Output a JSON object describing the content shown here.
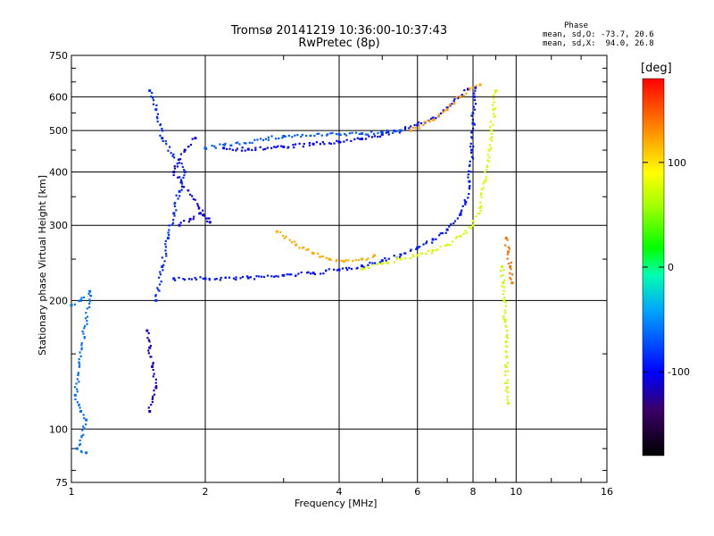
{
  "title": "Tromsø 20141219 10:36:00-10:37:43",
  "subtitle": "RwPretec (8p)",
  "stats": {
    "heading": "Phase",
    "line1": "mean, sd,O: -73.7, 20.6",
    "line2": "mean, sd,X:  94.0, 26.8"
  },
  "colorbar": {
    "label": "[deg]",
    "ticks": [
      "100",
      "0",
      "-100"
    ],
    "tick_values": [
      100,
      0,
      -100
    ],
    "range": [
      -180,
      180
    ]
  },
  "chart_data": {
    "type": "scatter",
    "title": "Tromsø 20141219 10:36:00-10:37:43",
    "subtitle": "RwPretec (8p)",
    "xlabel": "Frequency [MHz]",
    "ylabel": "Stationary phase Virtual Height [km]",
    "x_scale": "log",
    "y_scale": "log",
    "xlim": [
      1,
      16
    ],
    "ylim": [
      75,
      750
    ],
    "x_ticks": [
      1,
      2,
      4,
      6,
      8,
      10,
      16
    ],
    "x_tick_labels": [
      "1",
      "2",
      "4",
      "6",
      "8",
      "10",
      "16"
    ],
    "y_ticks": [
      75,
      100,
      200,
      300,
      400,
      500,
      600,
      750
    ],
    "y_tick_labels": [
      "75",
      "100",
      "200",
      "300",
      "400",
      "500",
      "600",
      "750"
    ],
    "grid": true,
    "color_encodes": "phase [deg]",
    "series": [
      {
        "color_phase": -95,
        "points": [
          [
            1.7,
            225
          ],
          [
            2,
            225
          ],
          [
            2.5,
            226
          ],
          [
            3,
            229
          ],
          [
            3.5,
            232
          ],
          [
            4,
            236
          ],
          [
            4.5,
            241
          ],
          [
            5,
            248
          ],
          [
            5.5,
            256
          ],
          [
            6,
            266
          ],
          [
            6.5,
            278
          ],
          [
            7,
            293
          ],
          [
            7.5,
            318
          ],
          [
            7.7,
            340
          ],
          [
            7.85,
            380
          ],
          [
            7.95,
            450
          ],
          [
            8,
            520
          ],
          [
            8.05,
            600
          ],
          [
            8.1,
            630
          ]
        ]
      },
      {
        "color_phase": -100,
        "points": [
          [
            2.2,
            455
          ],
          [
            2.5,
            452
          ],
          [
            3,
            458
          ],
          [
            3.5,
            465
          ],
          [
            4,
            470
          ],
          [
            4.5,
            478
          ],
          [
            5,
            490
          ],
          [
            5.5,
            500
          ],
          [
            6,
            515
          ],
          [
            6.5,
            535
          ],
          [
            7,
            565
          ],
          [
            7.5,
            600
          ],
          [
            7.8,
            625
          ]
        ]
      },
      {
        "color_phase": -70,
        "points": [
          [
            2,
            455
          ],
          [
            3,
            485
          ],
          [
            4,
            490
          ],
          [
            4.5,
            492
          ],
          [
            5,
            495
          ],
          [
            5.5,
            500
          ]
        ]
      },
      {
        "color_phase": 120,
        "points": [
          [
            2.9,
            290
          ],
          [
            3.2,
            270
          ],
          [
            3.5,
            258
          ],
          [
            3.8,
            250
          ],
          [
            4.1,
            247
          ],
          [
            4.5,
            250
          ],
          [
            4.8,
            255
          ]
        ]
      },
      {
        "color_phase": 75,
        "points": [
          [
            4.5,
            237
          ],
          [
            5,
            244
          ],
          [
            5.5,
            250
          ],
          [
            6,
            255
          ],
          [
            6.5,
            262
          ],
          [
            7,
            270
          ],
          [
            7.5,
            283
          ],
          [
            8,
            300
          ],
          [
            8.3,
            330
          ],
          [
            8.5,
            380
          ],
          [
            8.7,
            450
          ],
          [
            8.8,
            500
          ],
          [
            8.9,
            560
          ],
          [
            9,
            620
          ]
        ]
      },
      {
        "color_phase": 125,
        "points": [
          [
            5.8,
            500
          ],
          [
            6.5,
            530
          ],
          [
            7,
            560
          ],
          [
            7.5,
            600
          ],
          [
            8,
            630
          ],
          [
            8.3,
            640
          ]
        ]
      },
      {
        "color_phase": -85,
        "points": [
          [
            1.55,
            200
          ],
          [
            1.6,
            240
          ],
          [
            1.65,
            280
          ],
          [
            1.7,
            320
          ],
          [
            1.75,
            360
          ],
          [
            1.8,
            400
          ],
          [
            1.6,
            480
          ],
          [
            1.55,
            560
          ],
          [
            1.5,
            620
          ]
        ]
      },
      {
        "color_phase": -110,
        "points": [
          [
            1.75,
            300
          ],
          [
            1.85,
            310
          ],
          [
            1.95,
            320
          ],
          [
            2.05,
            305
          ],
          [
            1.7,
            400
          ],
          [
            1.8,
            450
          ],
          [
            1.9,
            480
          ]
        ]
      },
      {
        "color_phase": -115,
        "points": [
          [
            1.48,
            170
          ],
          [
            1.5,
            155
          ],
          [
            1.52,
            140
          ],
          [
            1.55,
            125
          ],
          [
            1.5,
            110
          ]
        ]
      },
      {
        "color_phase": -60,
        "points": [
          [
            1,
            195
          ],
          [
            1.05,
            200
          ],
          [
            1.1,
            210
          ],
          [
            1.02,
            120
          ],
          [
            1.05,
            110
          ],
          [
            1.08,
            105
          ],
          [
            1.03,
            90
          ],
          [
            1.08,
            88
          ]
        ]
      },
      {
        "color_phase": 70,
        "points": [
          [
            9.3,
            240
          ],
          [
            9.35,
            220
          ],
          [
            9.4,
            200
          ],
          [
            9.45,
            180
          ],
          [
            9.5,
            160
          ],
          [
            9.5,
            140
          ],
          [
            9.55,
            125
          ],
          [
            9.6,
            115
          ]
        ]
      },
      {
        "color_phase": 140,
        "points": [
          [
            9.5,
            280
          ],
          [
            9.6,
            260
          ],
          [
            9.7,
            240
          ],
          [
            9.8,
            220
          ]
        ]
      }
    ]
  }
}
